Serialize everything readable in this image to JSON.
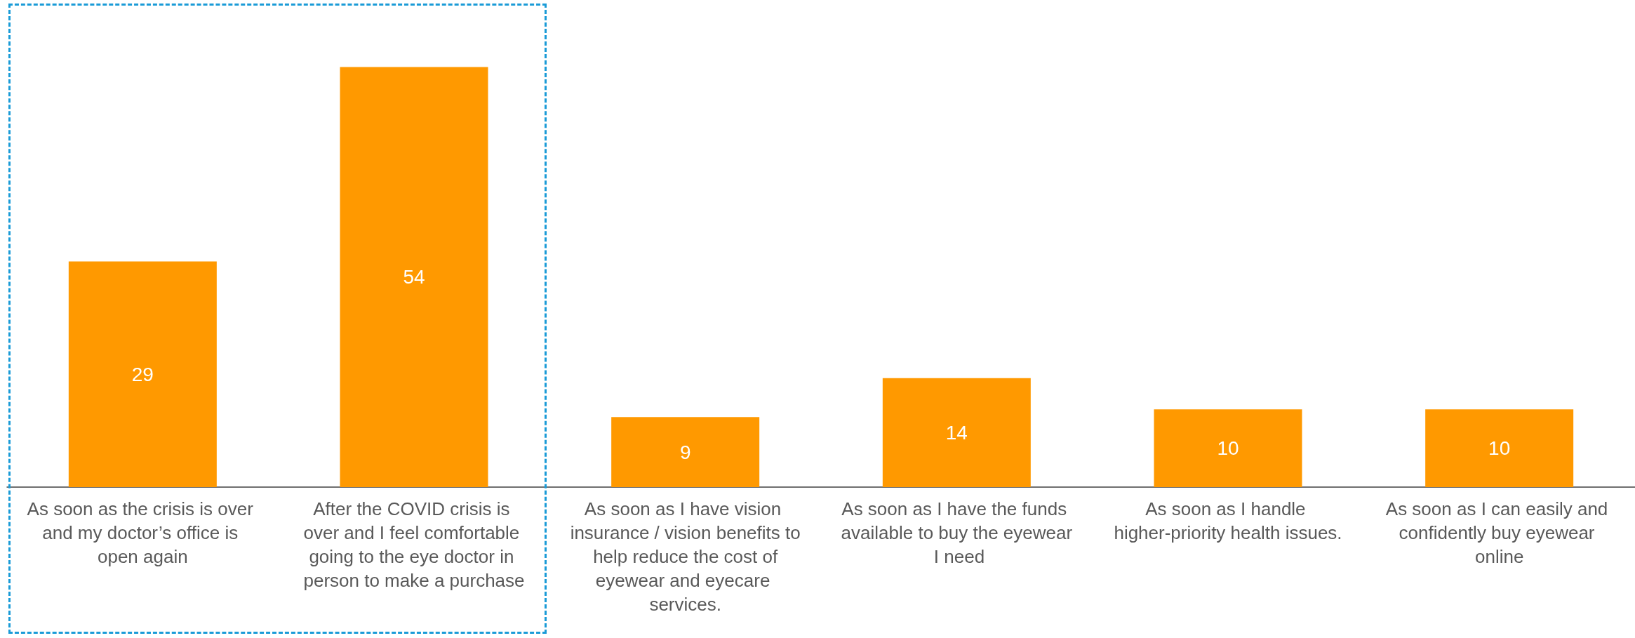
{
  "chart_data": {
    "type": "bar",
    "categories": [
      "As soon as the crisis is over and my doctor’s office is open again",
      "After the COVID crisis is over and I feel comfortable going to the eye doctor in person to make a purchase",
      "As soon as I have vision insurance / vision benefits to help reduce the cost of eyewear and eyecare services.",
      "As soon as I have the funds available to buy the eyewear I need",
      "As soon as I handle higher-priority health issues.",
      "As soon as I can easily and confidently buy eyewear online"
    ],
    "values": [
      29,
      54,
      9,
      14,
      10,
      10
    ],
    "color": "#ff9900",
    "data_labels": true
  }
}
